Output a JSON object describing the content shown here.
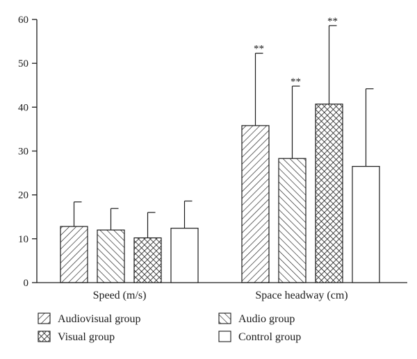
{
  "chart_data": {
    "type": "bar",
    "title": "",
    "xlabel": "",
    "ylabel": "",
    "ylim": [
      0,
      60
    ],
    "yticks": [
      0,
      10,
      20,
      30,
      40,
      50,
      60
    ],
    "categories": [
      "Speed (m/s)",
      "Space headway (cm)"
    ],
    "grid": false,
    "legend_position": "bottom",
    "series": [
      {
        "name": "Audiovisual group",
        "pattern": "diagonal-forward",
        "values": [
          12.8,
          35.8
        ],
        "errors": [
          5.6,
          16.5
        ],
        "annotations": [
          "",
          "**"
        ]
      },
      {
        "name": "Audio group",
        "pattern": "diagonal-backward",
        "values": [
          12.0,
          28.3
        ],
        "errors": [
          4.9,
          16.5
        ],
        "annotations": [
          "",
          "**"
        ]
      },
      {
        "name": "Visual group",
        "pattern": "crosshatch",
        "values": [
          10.2,
          40.7
        ],
        "errors": [
          5.8,
          17.9
        ],
        "annotations": [
          "",
          "**"
        ]
      },
      {
        "name": "Control group",
        "pattern": "none",
        "values": [
          12.4,
          26.5
        ],
        "errors": [
          6.2,
          17.7
        ],
        "annotations": [
          "",
          ""
        ]
      }
    ],
    "colors": {
      "stroke": "#1a1a1a",
      "fill": "#ffffff"
    }
  }
}
